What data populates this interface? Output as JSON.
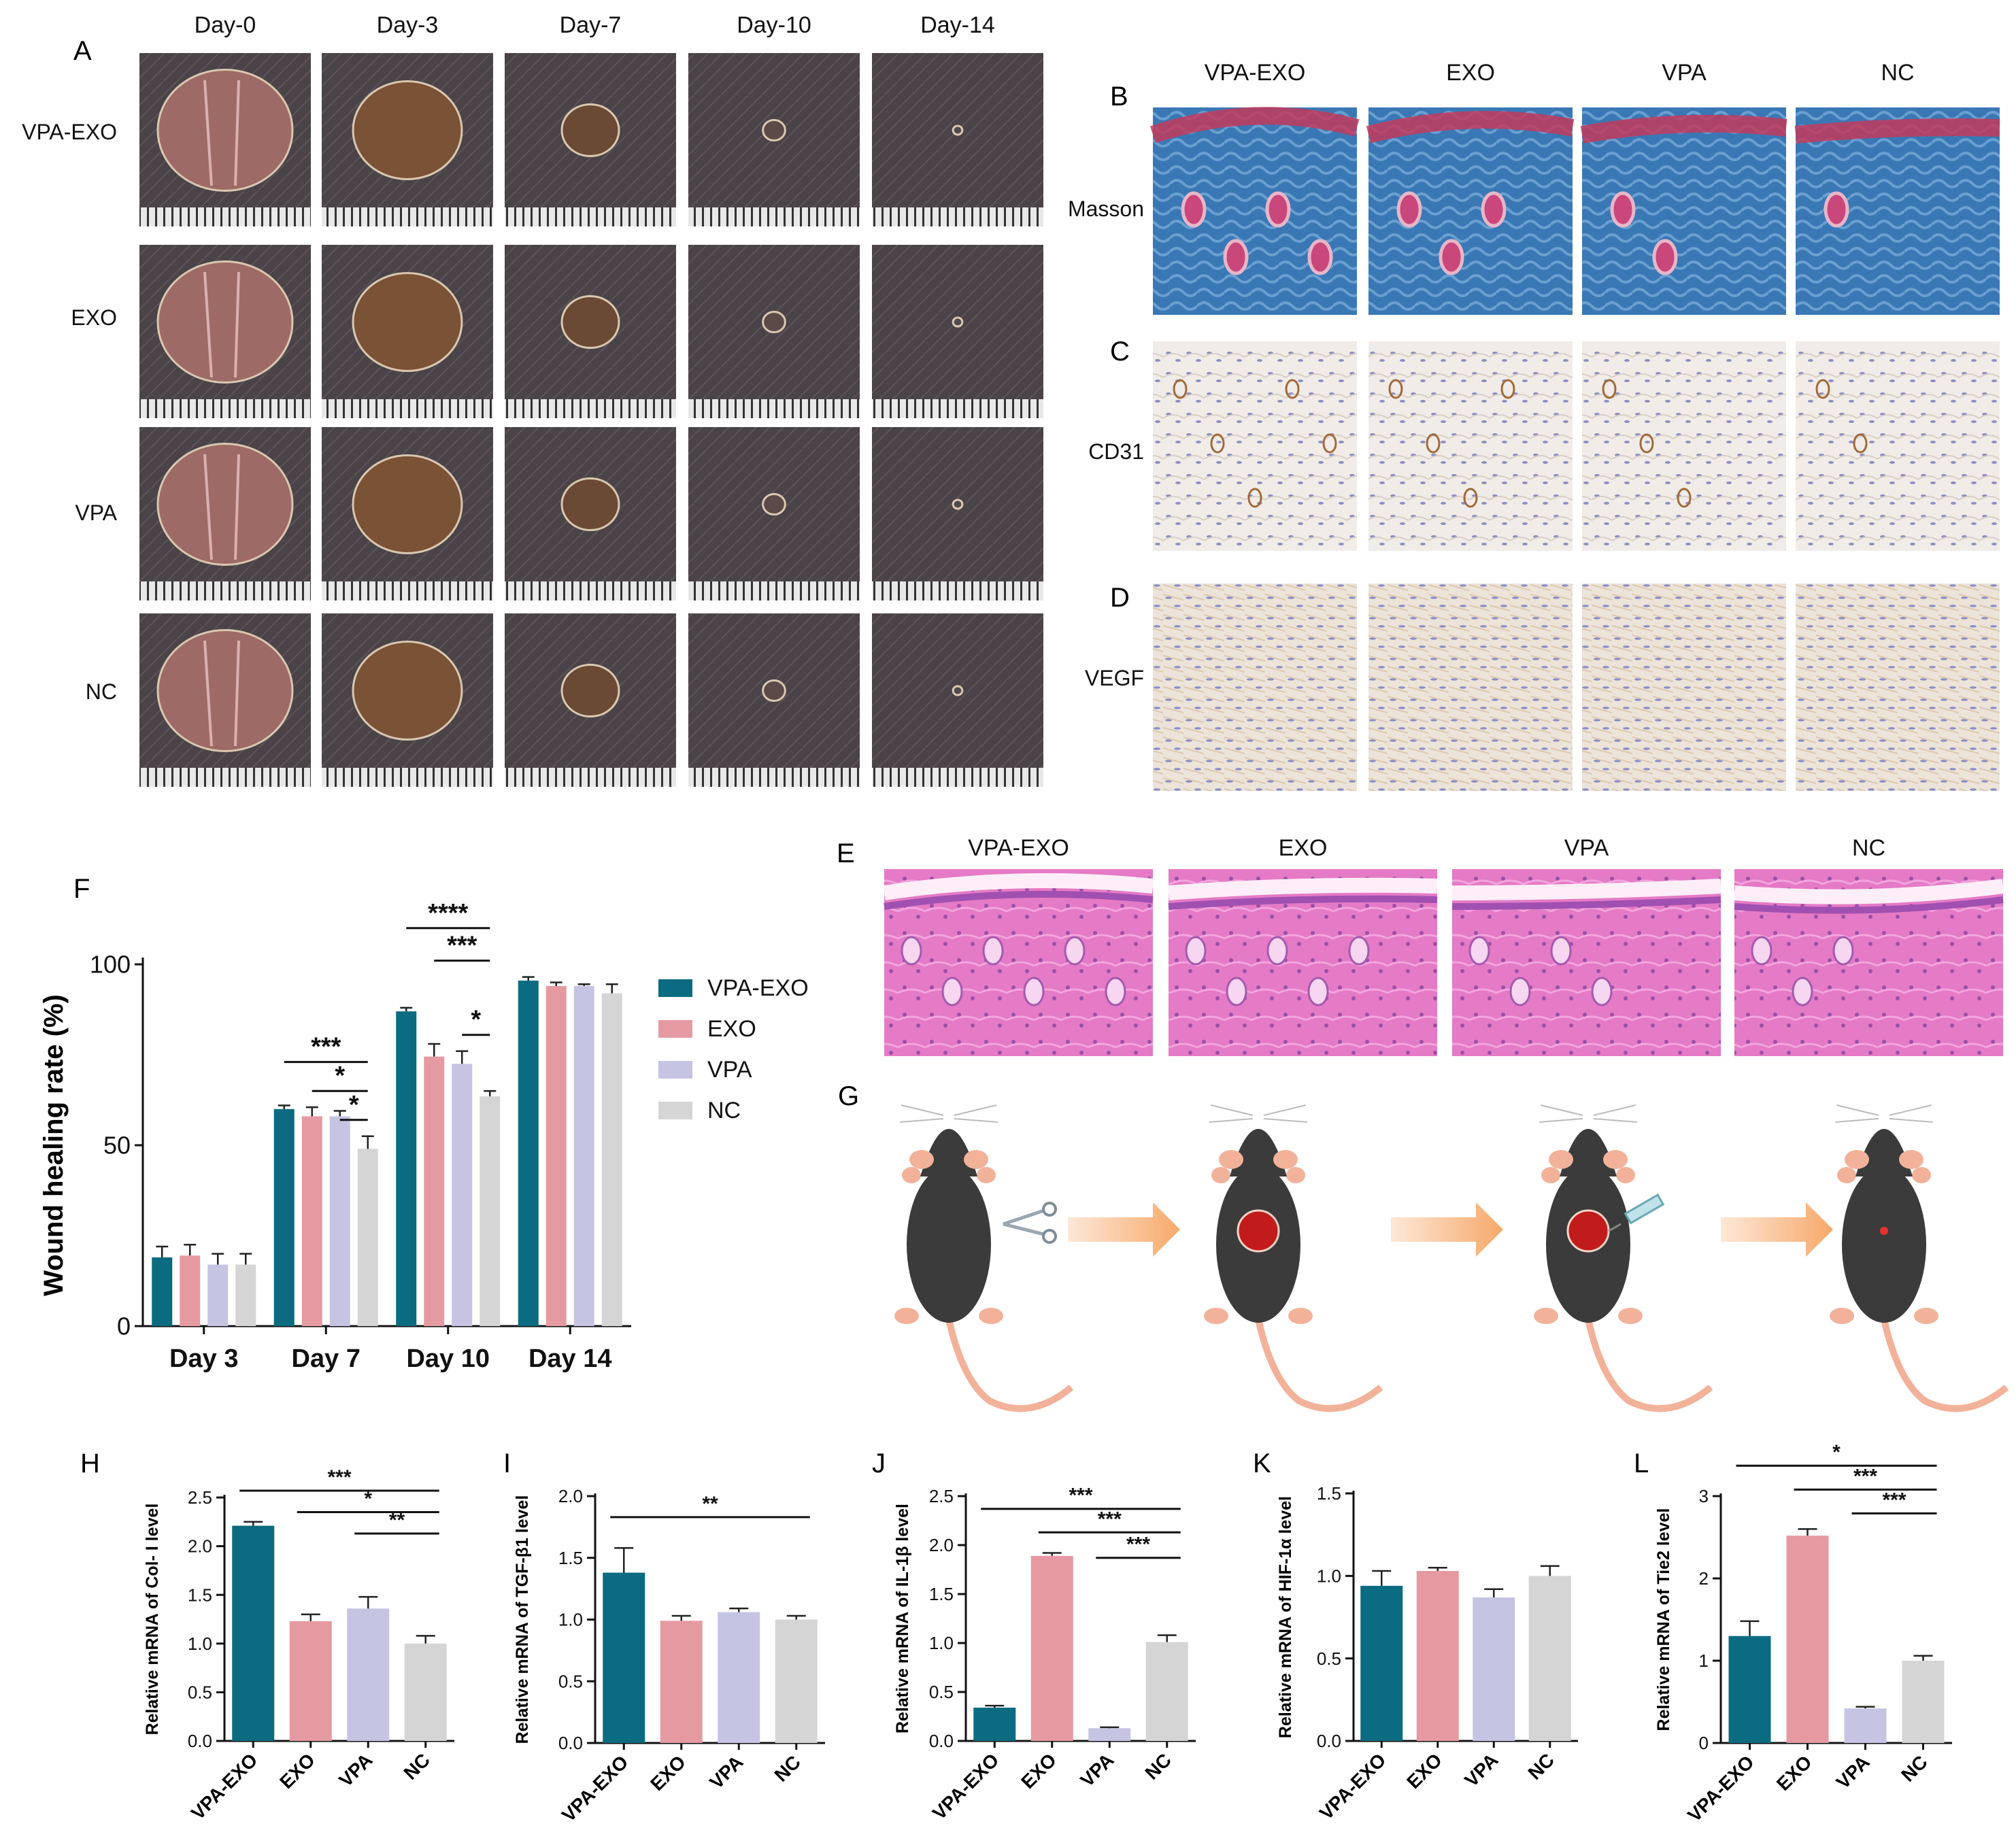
{
  "colors": {
    "vpa_exo": "#0b6b80",
    "exo": "#e59aa2",
    "vpa": "#c6c4e3",
    "nc": "#d5d5d5",
    "arrow": "#f7b27a",
    "mouse": "#3b3b3b",
    "skin": "#f2b29a",
    "wound": "#c21b1b"
  },
  "panel_letters": {
    "A": "A",
    "B": "B",
    "C": "C",
    "D": "D",
    "E": "E",
    "F": "F",
    "G": "G",
    "H": "H",
    "I": "I",
    "J": "J",
    "K": "K",
    "L": "L"
  },
  "panel_a": {
    "days": [
      "Day-0",
      "Day-3",
      "Day-7",
      "Day-10",
      "Day-14"
    ],
    "groups": [
      "VPA-EXO",
      "EXO",
      "VPA",
      "NC"
    ],
    "photo_shades": [
      "#9e6a66",
      "#7a5236",
      "#6b4a35",
      "#5a4a48",
      "#4f4a4d"
    ],
    "wound_fraction": [
      1.0,
      0.8,
      0.4,
      0.13,
      0.03
    ]
  },
  "panel_b_d": {
    "columns": [
      "VPA-EXO",
      "EXO",
      "VPA",
      "NC"
    ],
    "rows": [
      "Masson",
      "CD31",
      "VEGF"
    ]
  },
  "panel_e": {
    "columns": [
      "VPA-EXO",
      "EXO",
      "VPA",
      "NC"
    ]
  },
  "chart_data": [
    {
      "id": "F",
      "type": "bar",
      "ylabel": "Wound healing rate (%)",
      "categories": [
        "Day 3",
        "Day 7",
        "Day 10",
        "Day 14"
      ],
      "ylim": [
        0,
        100
      ],
      "yticks": [
        0,
        50,
        100
      ],
      "series": [
        {
          "name": "VPA-EXO",
          "values": [
            19,
            60,
            87,
            95.5
          ],
          "err": [
            3,
            1,
            1,
            1
          ]
        },
        {
          "name": "EXO",
          "values": [
            19.5,
            58,
            74.5,
            94
          ],
          "err": [
            3,
            2.5,
            3.5,
            1
          ]
        },
        {
          "name": "VPA",
          "values": [
            17,
            58,
            72.5,
            94
          ],
          "err": [
            3,
            1.5,
            3.5,
            0.5
          ]
        },
        {
          "name": "NC",
          "values": [
            17,
            49,
            63.5,
            92
          ],
          "err": [
            3,
            3.5,
            1.5,
            2.5
          ]
        }
      ],
      "sig": [
        {
          "label": "***"
        },
        {
          "label": "*"
        },
        {
          "label": "*"
        },
        {
          "label": "****"
        },
        {
          "label": "***"
        },
        {
          "label": "*"
        }
      ]
    },
    {
      "id": "H",
      "type": "bar",
      "ylabel": "Relative mRNA of Col- I level",
      "categories": [
        "VPA-EXO",
        "EXO",
        "VPA",
        "NC"
      ],
      "values": [
        2.21,
        1.23,
        1.36,
        1.0
      ],
      "err": [
        0.04,
        0.07,
        0.12,
        0.08
      ],
      "ylim": [
        0,
        2.5
      ],
      "yticks": [
        "0.0",
        "0.5",
        "1.0",
        "1.5",
        "2.0",
        "2.5"
      ],
      "sig": [
        {
          "label": "***"
        },
        {
          "label": "*"
        },
        {
          "label": "**"
        }
      ]
    },
    {
      "id": "I",
      "type": "bar",
      "ylabel": "Relative mRNA of TGF-β1 level",
      "categories": [
        "VPA-EXO",
        "EXO",
        "VPA",
        "NC"
      ],
      "values": [
        1.38,
        0.99,
        1.06,
        1.0
      ],
      "err": [
        0.2,
        0.04,
        0.03,
        0.03
      ],
      "ylim": [
        0,
        2.0
      ],
      "yticks": [
        "0.0",
        "0.5",
        "1.0",
        "1.5",
        "2.0"
      ],
      "sig": [
        {
          "label": "**"
        }
      ]
    },
    {
      "id": "J",
      "type": "bar",
      "ylabel": "Relative mRNA of IL-1β level",
      "categories": [
        "VPA-EXO",
        "EXO",
        "VPA",
        "NC"
      ],
      "values": [
        0.34,
        1.89,
        0.13,
        1.01
      ],
      "err": [
        0.02,
        0.03,
        0.01,
        0.07
      ],
      "ylim": [
        0,
        2.5
      ],
      "yticks": [
        "0.0",
        "0.5",
        "1.0",
        "1.5",
        "2.0",
        "2.5"
      ],
      "sig": [
        {
          "label": "***"
        },
        {
          "label": "***"
        },
        {
          "label": "***"
        }
      ]
    },
    {
      "id": "K",
      "type": "bar",
      "ylabel": "Relative mRNA of HIF-1α level",
      "categories": [
        "VPA-EXO",
        "EXO",
        "VPA",
        "NC"
      ],
      "values": [
        0.94,
        1.03,
        0.87,
        1.0
      ],
      "err": [
        0.09,
        0.02,
        0.05,
        0.06
      ],
      "ylim": [
        0,
        1.5
      ],
      "yticks": [
        "0.0",
        "0.5",
        "1.0",
        "1.5"
      ],
      "sig": []
    },
    {
      "id": "L",
      "type": "bar",
      "ylabel": "Relative mRNA of Tie2 level",
      "categories": [
        "VPA-EXO",
        "EXO",
        "VPA",
        "NC"
      ],
      "values": [
        1.3,
        2.52,
        0.42,
        1.0
      ],
      "err": [
        0.18,
        0.08,
        0.02,
        0.06
      ],
      "ylim": [
        0,
        3
      ],
      "yticks": [
        "0",
        "1",
        "2",
        "3"
      ],
      "sig": [
        {
          "label": "*"
        },
        {
          "label": "***"
        },
        {
          "label": "***"
        }
      ]
    }
  ]
}
